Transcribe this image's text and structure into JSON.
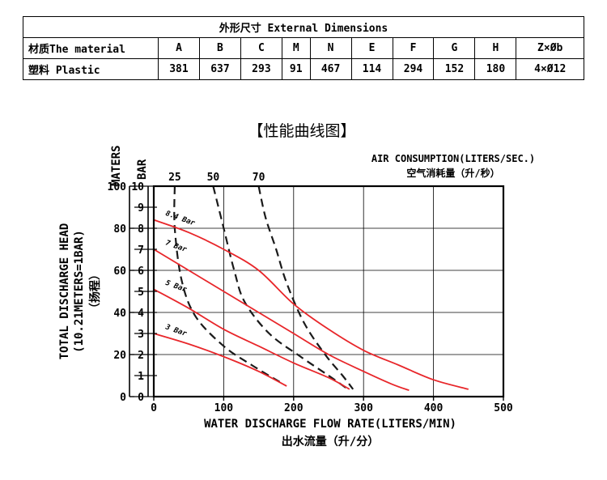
{
  "table": {
    "title": "外形尺寸  External Dimensions",
    "header": [
      "材质The material",
      "A",
      "B",
      "C",
      "M",
      "N",
      "E",
      "F",
      "G",
      "H",
      "Z×Øb"
    ],
    "row": [
      "塑料 Plastic",
      "381",
      "637",
      "293",
      "91",
      "467",
      "114",
      "294",
      "152",
      "180",
      "4×Ø12"
    ]
  },
  "chart_data": {
    "type": "line",
    "title": "【性能曲线图】",
    "xlabel": "WATER DISCHARGE FLOW RATE(LITERS/MIN)",
    "xlabel_cn": "出水流量（升/分）",
    "ylabel": "TOTAL DISCHARGE HEAD",
    "ylabel_2": "(10.21METERS=1BAR)",
    "ylabel_cn": "（扬程）",
    "y_meters_label": "MATERS",
    "y_bar_label": "BAR",
    "air_label": "AIR CONSUMPTION(LITERS/SEC.)",
    "air_label_cn": "空气消耗量（升/秒）",
    "xlim": [
      0,
      500
    ],
    "ylim_bar": [
      0,
      10
    ],
    "ylim_meters": [
      0,
      100
    ],
    "x_ticks": [
      "0",
      "100",
      "200",
      "300",
      "400",
      "500"
    ],
    "y_meter_ticks": [
      "0",
      "20",
      "40",
      "60",
      "80",
      "100"
    ],
    "y_bar_ticks": [
      "0",
      "1",
      "2",
      "3",
      "4",
      "5",
      "6",
      "7",
      "8",
      "9",
      "10"
    ],
    "grid": true,
    "pressure_series": [
      {
        "name": "8.4 Bar",
        "color": "#e8262a",
        "points": [
          [
            0,
            8.4
          ],
          [
            50,
            7.8
          ],
          [
            100,
            7.0
          ],
          [
            150,
            6.0
          ],
          [
            200,
            4.4
          ],
          [
            250,
            3.2
          ],
          [
            300,
            2.2
          ],
          [
            350,
            1.5
          ],
          [
            400,
            0.8
          ],
          [
            450,
            0.35
          ]
        ]
      },
      {
        "name": "7 Bar",
        "color": "#e8262a",
        "points": [
          [
            0,
            7.0
          ],
          [
            50,
            6.0
          ],
          [
            100,
            5.0
          ],
          [
            150,
            4.0
          ],
          [
            200,
            3.0
          ],
          [
            250,
            2.0
          ],
          [
            300,
            1.2
          ],
          [
            340,
            0.6
          ],
          [
            365,
            0.3
          ]
        ]
      },
      {
        "name": "5 Bar",
        "color": "#e8262a",
        "points": [
          [
            0,
            5.1
          ],
          [
            50,
            4.2
          ],
          [
            100,
            3.2
          ],
          [
            150,
            2.4
          ],
          [
            200,
            1.6
          ],
          [
            250,
            0.9
          ],
          [
            280,
            0.35
          ]
        ]
      },
      {
        "name": "3 Bar",
        "color": "#e8262a",
        "points": [
          [
            0,
            3.0
          ],
          [
            50,
            2.5
          ],
          [
            100,
            1.9
          ],
          [
            150,
            1.2
          ],
          [
            190,
            0.5
          ]
        ]
      }
    ],
    "air_series": [
      {
        "name": "25",
        "points": [
          [
            30,
            10.0
          ],
          [
            30,
            8.0
          ],
          [
            40,
            5.5
          ],
          [
            60,
            3.8
          ],
          [
            100,
            2.4
          ],
          [
            140,
            1.5
          ],
          [
            180,
            0.7
          ]
        ]
      },
      {
        "name": "50",
        "points": [
          [
            85,
            10.0
          ],
          [
            100,
            8.0
          ],
          [
            115,
            6.0
          ],
          [
            130,
            4.5
          ],
          [
            165,
            3.0
          ],
          [
            210,
            1.9
          ],
          [
            250,
            1.0
          ],
          [
            280,
            0.3
          ]
        ]
      },
      {
        "name": "70",
        "points": [
          [
            150,
            10.0
          ],
          [
            160,
            8.5
          ],
          [
            175,
            7.0
          ],
          [
            190,
            5.4
          ],
          [
            215,
            3.5
          ],
          [
            245,
            2.0
          ],
          [
            270,
            1.0
          ],
          [
            285,
            0.35
          ]
        ]
      }
    ]
  }
}
